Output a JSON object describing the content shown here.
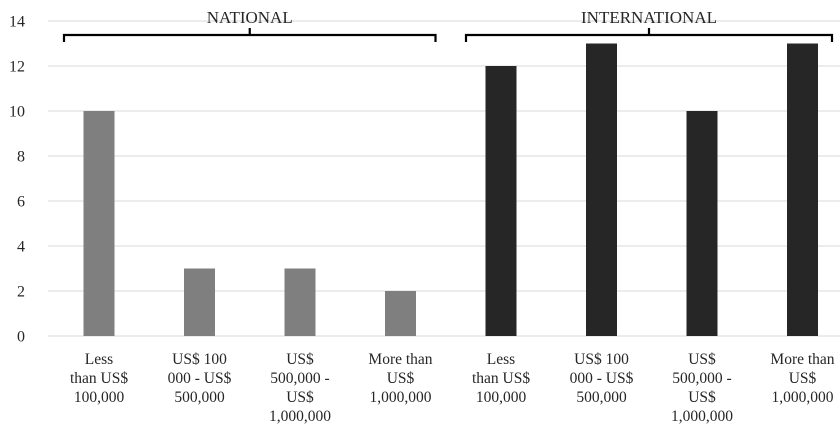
{
  "chart_data": {
    "type": "bar",
    "title": "",
    "xlabel": "",
    "ylabel": "",
    "ylim": [
      0,
      14
    ],
    "yticks": [
      "0",
      "2",
      "4",
      "6",
      "8",
      "10",
      "12",
      "14"
    ],
    "grid": true,
    "groups": [
      {
        "label": "NATIONAL",
        "color": "#7f7f7f",
        "categories": [
          [
            "Less",
            "than US$",
            "100,000"
          ],
          [
            "US$ 100",
            "000 - US$",
            "500,000"
          ],
          [
            "US$",
            "500,000 -",
            "US$",
            "1,000,000"
          ],
          [
            "More than",
            "US$",
            "1,000,000"
          ]
        ],
        "values": [
          10,
          3,
          3,
          2
        ]
      },
      {
        "label": "INTERNATIONAL",
        "color": "#262626",
        "categories": [
          [
            "Less",
            "than US$",
            "100,000"
          ],
          [
            "US$ 100",
            "000 - US$",
            "500,000"
          ],
          [
            "US$",
            "500,000 -",
            "US$",
            "1,000,000"
          ],
          [
            "More than",
            "US$",
            "1,000,000"
          ]
        ],
        "values": [
          12,
          13,
          10,
          13
        ]
      }
    ]
  }
}
